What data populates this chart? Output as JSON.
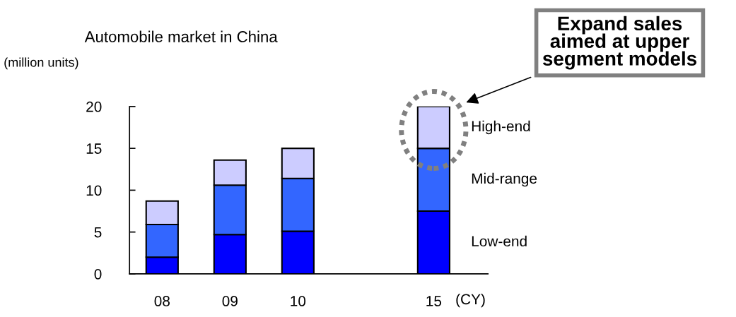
{
  "chart_data": {
    "type": "bar",
    "stacked": true,
    "title": "Automobile market in China",
    "ylabel": "(million units)",
    "xlabel": "(CY)",
    "categories": [
      "08",
      "09",
      "10",
      null,
      "15"
    ],
    "series": [
      {
        "name": "Low-end",
        "color": "#0000ff",
        "values": [
          2.0,
          4.7,
          5.1,
          null,
          7.5
        ]
      },
      {
        "name": "Mid-range",
        "color": "#3366ff",
        "values": [
          3.9,
          5.9,
          6.3,
          null,
          7.5
        ]
      },
      {
        "name": "High-end",
        "color": "#ccccff",
        "values": [
          2.8,
          3.0,
          3.6,
          null,
          5.0
        ]
      }
    ],
    "ylim": [
      0,
      20
    ],
    "yticks": [
      0,
      5,
      10,
      15,
      20
    ],
    "grid": false,
    "legend": false,
    "annotations": [
      "Expand sales\naimed at upper\nsegment models"
    ]
  }
}
